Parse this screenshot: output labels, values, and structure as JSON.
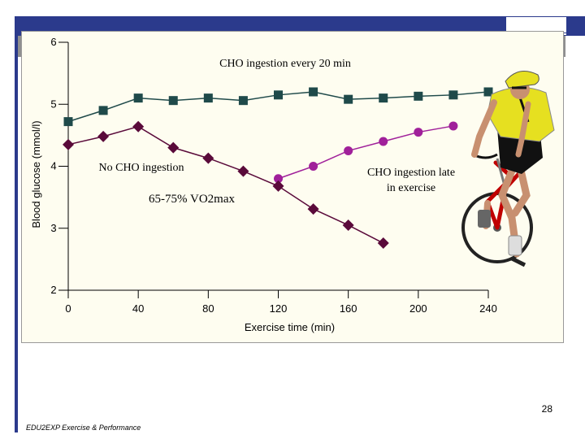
{
  "slide": {
    "page_number": "28",
    "footer": "EDU2EXP Exercise & Performance"
  },
  "colors": {
    "band": "#2b3a8c",
    "plot_background": "#fefdf0",
    "series_every20": "#1f4a4a",
    "series_none": "#5a0a3a",
    "series_late": "#a0209a"
  },
  "chart_data": {
    "type": "line",
    "title": "",
    "xlabel": "Exercise time (min)",
    "ylabel": "Blood glucose (mmol/l)",
    "xlim": [
      0,
      240
    ],
    "ylim": [
      2,
      6
    ],
    "x_ticks": [
      "0",
      "40",
      "80",
      "120",
      "160",
      "200",
      "240"
    ],
    "y_ticks": [
      "2",
      "3",
      "4",
      "5",
      "6"
    ],
    "series": [
      {
        "name": "CHO ingestion every 20 min",
        "marker": "square",
        "color": "#1f4a4a",
        "x": [
          0,
          20,
          40,
          60,
          80,
          100,
          120,
          140,
          160,
          180,
          200,
          220,
          240
        ],
        "y": [
          4.72,
          4.9,
          5.1,
          5.06,
          5.1,
          5.06,
          5.15,
          5.2,
          5.08,
          5.1,
          5.13,
          5.15,
          5.2
        ]
      },
      {
        "name": "No CHO ingestion",
        "marker": "diamond",
        "color": "#5a0a3a",
        "x": [
          0,
          20,
          40,
          60,
          80,
          100,
          120,
          140,
          160,
          180
        ],
        "y": [
          4.35,
          4.48,
          4.64,
          4.3,
          4.13,
          3.92,
          3.68,
          3.31,
          3.05,
          2.76
        ]
      },
      {
        "name": "CHO ingestion late in exercise",
        "marker": "circle",
        "color": "#a0209a",
        "x": [
          120,
          140,
          160,
          180,
          200,
          220
        ],
        "y": [
          3.8,
          4.0,
          4.25,
          4.4,
          4.55,
          4.65
        ]
      }
    ],
    "annotations": [
      {
        "id": "every20",
        "text": "CHO ingestion every 20 min"
      },
      {
        "id": "none",
        "text": "No CHO ingestion"
      },
      {
        "id": "intensity",
        "text": "65-75% VO2max"
      },
      {
        "id": "late_line1",
        "text": "CHO ingestion late"
      },
      {
        "id": "late_line2",
        "text": "in exercise"
      }
    ]
  }
}
